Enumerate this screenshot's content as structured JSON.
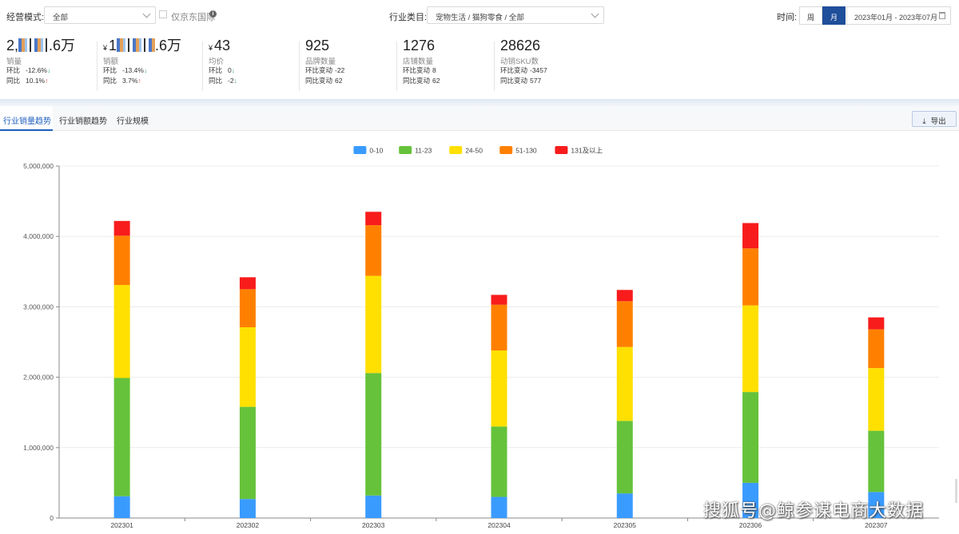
{
  "filters": {
    "mode_label": "经营模式:",
    "mode_value": "全部",
    "jd_intl_label": "仅京东国际",
    "info_icon": "info-icon",
    "industry_label": "行业类目:",
    "industry_value": "宠物生活 / 猫狗零食 / 全部",
    "time_label": "时间:",
    "week_label": "周",
    "month_label": "月",
    "date_range": "2023年01月 - 2023年07月",
    "active_period": "月"
  },
  "metrics": [
    {
      "value_prefix": "2,",
      "value_suffix": ".6万",
      "masked": true,
      "label": "销量",
      "row1_key": "环比",
      "row1_val": "-12.6%",
      "row1_dir": "down",
      "row2_key": "同比",
      "row2_val": "10.1%",
      "row2_dir": "up"
    },
    {
      "currency": "¥",
      "value_prefix": "1",
      "value_suffix": ".6万",
      "masked": true,
      "label": "销额",
      "row1_key": "环比",
      "row1_val": "-13.4%",
      "row1_dir": "down",
      "row2_key": "同比",
      "row2_val": "3.7%",
      "row2_dir": "up"
    },
    {
      "currency": "¥",
      "value_prefix": "43",
      "value_suffix": "",
      "masked": false,
      "label": "均价",
      "row1_key": "环比",
      "row1_val": "0",
      "row1_dir": "down",
      "row2_key": "同比",
      "row2_val": "-2",
      "row2_dir": "down"
    },
    {
      "value_prefix": "925",
      "value_suffix": "",
      "masked": false,
      "label": "品牌数量",
      "row1_key": "环比变动",
      "row1_val": "-22",
      "row1_dir": "",
      "row2_key": "同比变动",
      "row2_val": "62",
      "row2_dir": ""
    },
    {
      "value_prefix": "1276",
      "value_suffix": "",
      "masked": false,
      "label": "店铺数量",
      "row1_key": "环比变动",
      "row1_val": "8",
      "row1_dir": "",
      "row2_key": "同比变动",
      "row2_val": "62",
      "row2_dir": ""
    },
    {
      "value_prefix": "28626",
      "value_suffix": "",
      "masked": false,
      "label": "动销SKU数",
      "row1_key": "环比变动",
      "row1_val": "-3457",
      "row1_dir": "",
      "row2_key": "同比变动",
      "row2_val": "577",
      "row2_dir": ""
    }
  ],
  "tabs": [
    "行业销量趋势",
    "行业销额趋势",
    "行业规模"
  ],
  "active_tab": 0,
  "export_label": "导出",
  "export_icon": "download-icon",
  "watermark": "搜狐号@鲸参谋电商大数据",
  "chart_data": {
    "type": "bar",
    "stacked": true,
    "categories": [
      "202301",
      "202302",
      "202303",
      "202304",
      "202305",
      "202306",
      "202307"
    ],
    "ylim": [
      0,
      5000000
    ],
    "yticks": [
      "0",
      "1,000,000",
      "2,000,000",
      "3,000,000",
      "4,000,000",
      "5,000,000"
    ],
    "legend_position": "top-center",
    "grid": true,
    "series": [
      {
        "name": "0-10",
        "color": "#3a9bff",
        "values": [
          310000,
          270000,
          320000,
          300000,
          350000,
          500000,
          370000
        ]
      },
      {
        "name": "11-23",
        "color": "#66c23a",
        "values": [
          1680000,
          1310000,
          1740000,
          1000000,
          1030000,
          1290000,
          870000
        ]
      },
      {
        "name": "24-50",
        "color": "#ffe000",
        "values": [
          1320000,
          1130000,
          1380000,
          1080000,
          1050000,
          1230000,
          890000
        ]
      },
      {
        "name": "51-130",
        "color": "#ff8000",
        "values": [
          700000,
          540000,
          720000,
          650000,
          650000,
          810000,
          550000
        ]
      },
      {
        "name": "131及以上",
        "color": "#f81c1c",
        "values": [
          210000,
          170000,
          190000,
          140000,
          160000,
          360000,
          170000
        ]
      }
    ]
  }
}
